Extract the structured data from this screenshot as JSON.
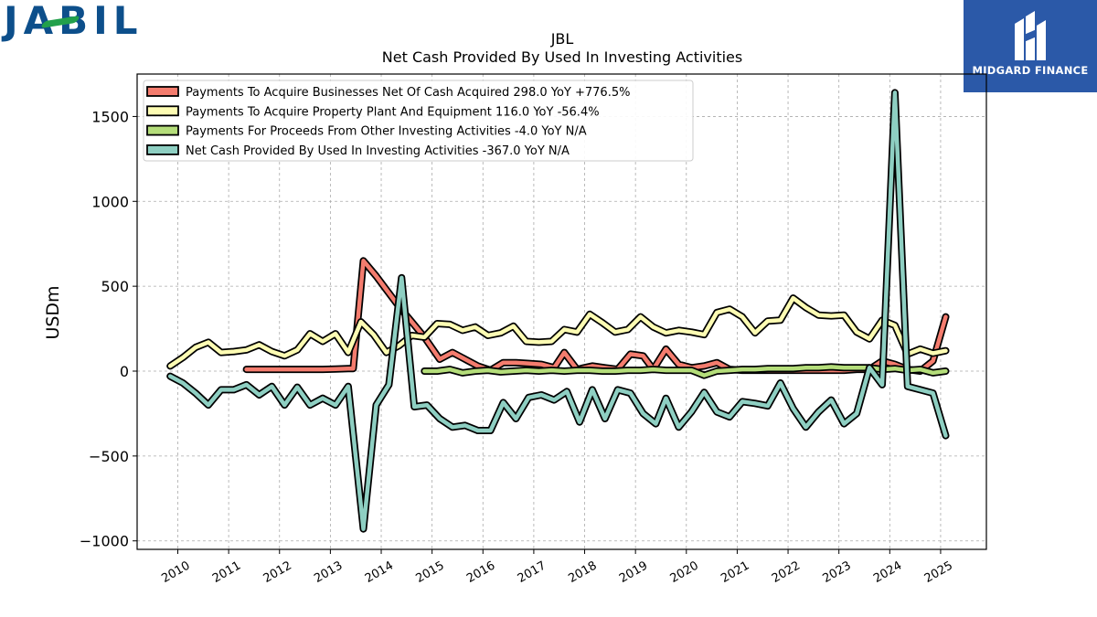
{
  "branding": {
    "company_logo_text": "JABIL",
    "partner_name": "MIDGARD FINANCE"
  },
  "chart_data": {
    "type": "line",
    "title": "JBL",
    "subtitle": "Net Cash Provided By Used In Investing Activities",
    "xlabel": "",
    "ylabel": "USDm",
    "xlim": [
      2009.2,
      2025.9
    ],
    "ylim": [
      -1050,
      1750
    ],
    "yticks": [
      -1000,
      -500,
      0,
      500,
      1000,
      1500
    ],
    "ytick_labels": [
      "−1000",
      "−500",
      "0",
      "500",
      "1000",
      "1500"
    ],
    "xticks": [
      2010,
      2011,
      2012,
      2013,
      2014,
      2015,
      2016,
      2017,
      2018,
      2019,
      2020,
      2021,
      2022,
      2023,
      2024,
      2025
    ],
    "xtick_labels": [
      "2010",
      "2011",
      "2012",
      "2013",
      "2014",
      "2015",
      "2016",
      "2017",
      "2018",
      "2019",
      "2020",
      "2021",
      "2022",
      "2023",
      "2024",
      "2025"
    ],
    "grid": true,
    "legend_position": "top-left",
    "series": [
      {
        "name": "Payments To Acquire Businesses Net Of Cash Acquired  298.0 YoY +776.5%",
        "color": "#f47c6e",
        "points": [
          [
            2011.35,
            10
          ],
          [
            2011.6,
            10
          ],
          [
            2011.85,
            10
          ],
          [
            2012.1,
            10
          ],
          [
            2012.35,
            10
          ],
          [
            2012.6,
            10
          ],
          [
            2012.85,
            10
          ],
          [
            2013.1,
            12
          ],
          [
            2013.35,
            15
          ],
          [
            2013.45,
            15
          ],
          [
            2013.65,
            650
          ],
          [
            2013.9,
            560
          ],
          [
            2014.1,
            480
          ],
          [
            2014.35,
            380
          ],
          [
            2014.6,
            290
          ],
          [
            2014.85,
            200
          ],
          [
            2015.15,
            70
          ],
          [
            2015.4,
            110
          ],
          [
            2015.65,
            70
          ],
          [
            2015.9,
            30
          ],
          [
            2016.15,
            5
          ],
          [
            2016.4,
            50
          ],
          [
            2016.65,
            50
          ],
          [
            2016.9,
            45
          ],
          [
            2017.15,
            40
          ],
          [
            2017.4,
            20
          ],
          [
            2017.6,
            110
          ],
          [
            2017.85,
            10
          ],
          [
            2018.15,
            30
          ],
          [
            2018.4,
            20
          ],
          [
            2018.65,
            10
          ],
          [
            2018.9,
            100
          ],
          [
            2019.15,
            90
          ],
          [
            2019.35,
            10
          ],
          [
            2019.6,
            130
          ],
          [
            2019.85,
            40
          ],
          [
            2020.1,
            20
          ],
          [
            2020.35,
            30
          ],
          [
            2020.6,
            50
          ],
          [
            2020.85,
            10
          ],
          [
            2021.1,
            5
          ],
          [
            2021.35,
            5
          ],
          [
            2021.6,
            5
          ],
          [
            2021.85,
            5
          ],
          [
            2022.1,
            5
          ],
          [
            2022.35,
            5
          ],
          [
            2022.6,
            5
          ],
          [
            2022.85,
            5
          ],
          [
            2023.1,
            5
          ],
          [
            2023.35,
            10
          ],
          [
            2023.6,
            10
          ],
          [
            2023.85,
            60
          ],
          [
            2024.1,
            40
          ],
          [
            2024.35,
            10
          ],
          [
            2024.6,
            0
          ],
          [
            2024.85,
            60
          ],
          [
            2025.1,
            320
          ]
        ]
      },
      {
        "name": "Payments To Acquire Property Plant And Equipment  116.0 YoY -56.4%",
        "color": "#fdfcb3",
        "points": [
          [
            2009.85,
            30
          ],
          [
            2010.1,
            80
          ],
          [
            2010.35,
            140
          ],
          [
            2010.6,
            170
          ],
          [
            2010.85,
            110
          ],
          [
            2011.1,
            115
          ],
          [
            2011.35,
            125
          ],
          [
            2011.6,
            155
          ],
          [
            2011.85,
            115
          ],
          [
            2012.1,
            90
          ],
          [
            2012.35,
            125
          ],
          [
            2012.6,
            220
          ],
          [
            2012.85,
            175
          ],
          [
            2013.1,
            220
          ],
          [
            2013.35,
            110
          ],
          [
            2013.6,
            290
          ],
          [
            2013.85,
            215
          ],
          [
            2014.1,
            110
          ],
          [
            2014.35,
            150
          ],
          [
            2014.6,
            210
          ],
          [
            2014.85,
            200
          ],
          [
            2015.1,
            280
          ],
          [
            2015.35,
            275
          ],
          [
            2015.6,
            240
          ],
          [
            2015.85,
            260
          ],
          [
            2016.1,
            210
          ],
          [
            2016.35,
            225
          ],
          [
            2016.6,
            265
          ],
          [
            2016.85,
            175
          ],
          [
            2017.1,
            170
          ],
          [
            2017.35,
            175
          ],
          [
            2017.6,
            245
          ],
          [
            2017.85,
            230
          ],
          [
            2018.1,
            335
          ],
          [
            2018.35,
            285
          ],
          [
            2018.6,
            230
          ],
          [
            2018.85,
            245
          ],
          [
            2019.1,
            320
          ],
          [
            2019.35,
            260
          ],
          [
            2019.6,
            225
          ],
          [
            2019.85,
            240
          ],
          [
            2020.1,
            230
          ],
          [
            2020.35,
            215
          ],
          [
            2020.6,
            345
          ],
          [
            2020.85,
            365
          ],
          [
            2021.1,
            320
          ],
          [
            2021.35,
            225
          ],
          [
            2021.6,
            295
          ],
          [
            2021.85,
            300
          ],
          [
            2022.1,
            430
          ],
          [
            2022.35,
            375
          ],
          [
            2022.6,
            330
          ],
          [
            2022.85,
            325
          ],
          [
            2023.1,
            330
          ],
          [
            2023.35,
            230
          ],
          [
            2023.6,
            190
          ],
          [
            2023.85,
            300
          ],
          [
            2024.1,
            270
          ],
          [
            2024.35,
            100
          ],
          [
            2024.6,
            130
          ],
          [
            2024.85,
            105
          ],
          [
            2025.1,
            120
          ]
        ]
      },
      {
        "name": "Payments For Proceeds From Other Investing Activities  -4.0 YoY N/A",
        "color": "#b4dd7a",
        "points": [
          [
            2014.85,
            0
          ],
          [
            2015.1,
            0
          ],
          [
            2015.35,
            10
          ],
          [
            2015.6,
            -10
          ],
          [
            2015.85,
            0
          ],
          [
            2016.1,
            5
          ],
          [
            2016.35,
            -5
          ],
          [
            2016.6,
            0
          ],
          [
            2016.85,
            5
          ],
          [
            2017.1,
            0
          ],
          [
            2017.35,
            5
          ],
          [
            2017.6,
            0
          ],
          [
            2017.85,
            5
          ],
          [
            2018.1,
            5
          ],
          [
            2018.35,
            0
          ],
          [
            2018.6,
            0
          ],
          [
            2018.85,
            5
          ],
          [
            2019.1,
            5
          ],
          [
            2019.35,
            10
          ],
          [
            2019.6,
            5
          ],
          [
            2019.85,
            5
          ],
          [
            2020.1,
            5
          ],
          [
            2020.35,
            -25
          ],
          [
            2020.6,
            0
          ],
          [
            2020.85,
            5
          ],
          [
            2021.1,
            10
          ],
          [
            2021.35,
            10
          ],
          [
            2021.6,
            15
          ],
          [
            2021.85,
            15
          ],
          [
            2022.1,
            15
          ],
          [
            2022.35,
            20
          ],
          [
            2022.6,
            20
          ],
          [
            2022.85,
            25
          ],
          [
            2023.1,
            20
          ],
          [
            2023.35,
            20
          ],
          [
            2023.6,
            20
          ],
          [
            2023.85,
            10
          ],
          [
            2024.1,
            15
          ],
          [
            2024.35,
            5
          ],
          [
            2024.6,
            10
          ],
          [
            2024.85,
            -10
          ],
          [
            2025.1,
            0
          ]
        ]
      },
      {
        "name": "Net Cash Provided By Used In Investing Activities  -367.0 YoY N/A",
        "color": "#8ecfc2",
        "points": [
          [
            2009.85,
            -30
          ],
          [
            2010.1,
            -70
          ],
          [
            2010.35,
            -130
          ],
          [
            2010.6,
            -200
          ],
          [
            2010.85,
            -110
          ],
          [
            2011.1,
            -110
          ],
          [
            2011.35,
            -80
          ],
          [
            2011.6,
            -140
          ],
          [
            2011.85,
            -90
          ],
          [
            2012.1,
            -200
          ],
          [
            2012.35,
            -95
          ],
          [
            2012.6,
            -200
          ],
          [
            2012.85,
            -160
          ],
          [
            2013.1,
            -200
          ],
          [
            2013.35,
            -90
          ],
          [
            2013.65,
            -930
          ],
          [
            2013.9,
            -200
          ],
          [
            2014.15,
            -80
          ],
          [
            2014.4,
            550
          ],
          [
            2014.65,
            -210
          ],
          [
            2014.9,
            -200
          ],
          [
            2015.15,
            -280
          ],
          [
            2015.4,
            -330
          ],
          [
            2015.65,
            -320
          ],
          [
            2015.9,
            -350
          ],
          [
            2016.15,
            -350
          ],
          [
            2016.4,
            -185
          ],
          [
            2016.65,
            -280
          ],
          [
            2016.9,
            -155
          ],
          [
            2017.15,
            -140
          ],
          [
            2017.4,
            -170
          ],
          [
            2017.65,
            -120
          ],
          [
            2017.9,
            -300
          ],
          [
            2018.15,
            -110
          ],
          [
            2018.4,
            -280
          ],
          [
            2018.65,
            -110
          ],
          [
            2018.9,
            -130
          ],
          [
            2019.15,
            -250
          ],
          [
            2019.4,
            -310
          ],
          [
            2019.6,
            -160
          ],
          [
            2019.85,
            -330
          ],
          [
            2020.1,
            -240
          ],
          [
            2020.35,
            -125
          ],
          [
            2020.6,
            -240
          ],
          [
            2020.85,
            -270
          ],
          [
            2021.1,
            -180
          ],
          [
            2021.35,
            -190
          ],
          [
            2021.6,
            -205
          ],
          [
            2021.85,
            -70
          ],
          [
            2022.1,
            -220
          ],
          [
            2022.35,
            -330
          ],
          [
            2022.6,
            -240
          ],
          [
            2022.85,
            -170
          ],
          [
            2023.1,
            -310
          ],
          [
            2023.35,
            -250
          ],
          [
            2023.6,
            20
          ],
          [
            2023.85,
            -80
          ],
          [
            2024.1,
            1640
          ],
          [
            2024.35,
            -90
          ],
          [
            2024.6,
            -110
          ],
          [
            2024.85,
            -130
          ],
          [
            2025.1,
            -380
          ]
        ]
      }
    ]
  }
}
